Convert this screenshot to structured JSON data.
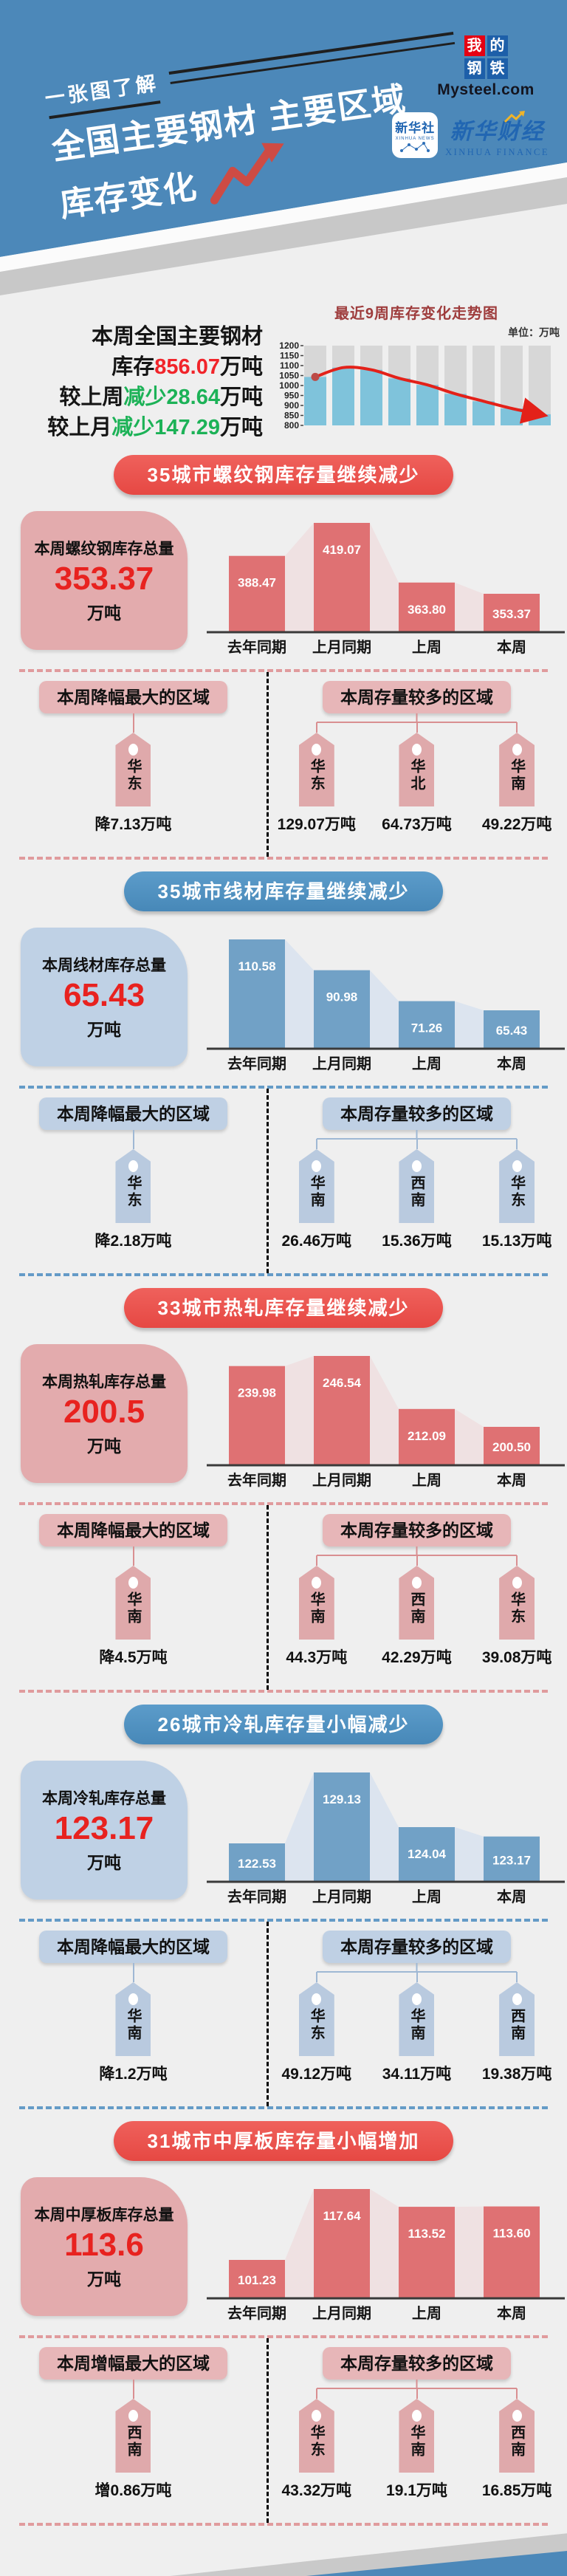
{
  "colors": {
    "page_bg": "#EFEFEF",
    "header_blue": "#4C88B9",
    "red_pill": "#E8524E",
    "blue_pill": "#5191BE",
    "red_bar": "#DF7173",
    "red_bar_light": "#EFE1E2",
    "blue_bar": "#71A1C6",
    "blue_bar_light": "#DCE4EF",
    "red_tag": "#DFA9AB",
    "blue_tag": "#B9CADF",
    "red_connector": "#D98F91",
    "blue_connector": "#9FB8D4",
    "value_red": "#F1242A",
    "value_green": "#1CB257",
    "card_value_red": "#E8221F",
    "trend_bar": "#7FC3DB",
    "trend_column_bg": "#D7D7D7",
    "trend_line": "#E32119",
    "trend_title": "#9E3C3C"
  },
  "header": {
    "tagline": "一张图了解",
    "title_line1": "全国主要钢材 主要区域",
    "title_line2": "库存变化",
    "mysteel": {
      "grid": [
        "我",
        "的",
        "钢",
        "铁"
      ],
      "domain": "Mysteel.com"
    },
    "xinhua_news": {
      "cn": "新华社",
      "en": "XINHUA NEWS"
    },
    "xinhua_finance": {
      "cn": "新华财经",
      "en": "XINHUA FINANCE"
    }
  },
  "summary": {
    "line1": "本周全国主要钢材",
    "line2_pre": "库存",
    "line2_num": "856.07",
    "line2_post": "万吨",
    "line3_pre": "较上周",
    "line3_num": "减少28.64",
    "line3_post": "万吨",
    "line4_pre": "较上月",
    "line4_num": "减少147.29",
    "line4_post": "万吨"
  },
  "chart_data": [
    {
      "type": "bar",
      "title": "最近9周库存变化走势图",
      "unit_label": "单位：万吨",
      "ylim": [
        800,
        1200
      ],
      "y_ticks": [
        800,
        850,
        900,
        950,
        1000,
        1050,
        1100,
        1150,
        1200
      ],
      "x_labels": [],
      "values": [
        1043,
        1090,
        1079,
        1036,
        1003,
        958,
        921,
        885,
        856
      ],
      "overlay": "smoothed red trend line with start dot and end arrow",
      "note": "weekly values estimated from gridlines; latest week = 856.07"
    },
    {
      "type": "bar",
      "title": "35城市螺纹钢库存",
      "categories": [
        "去年同期",
        "上月同期",
        "上周",
        "本周"
      ],
      "values": [
        388.47,
        419.07,
        363.8,
        353.37
      ],
      "labels": [
        "388.47",
        "419.07",
        "363.80",
        "353.37"
      ]
    },
    {
      "type": "bar",
      "title": "35城市线材库存",
      "categories": [
        "去年同期",
        "上月同期",
        "上周",
        "本周"
      ],
      "values": [
        110.58,
        90.98,
        71.26,
        65.43
      ],
      "labels": [
        "110.58",
        "90.98",
        "71.26",
        "65.43"
      ]
    },
    {
      "type": "bar",
      "title": "33城市热轧库存",
      "categories": [
        "去年同期",
        "上月同期",
        "上周",
        "本周"
      ],
      "values": [
        239.98,
        246.54,
        212.09,
        200.5
      ],
      "labels": [
        "239.98",
        "246.54",
        "212.09",
        "200.50"
      ]
    },
    {
      "type": "bar",
      "title": "26城市冷轧库存",
      "categories": [
        "去年同期",
        "上月同期",
        "上周",
        "本周"
      ],
      "values": [
        122.53,
        129.13,
        124.04,
        123.17
      ],
      "labels": [
        "122.53",
        "129.13",
        "124.04",
        "123.17"
      ]
    },
    {
      "type": "bar",
      "title": "31城市中厚板库存",
      "categories": [
        "去年同期",
        "上月同期",
        "上周",
        "本周"
      ],
      "values": [
        101.23,
        117.64,
        113.52,
        113.6
      ],
      "labels": [
        "101.23",
        "117.64",
        "113.52",
        "113.60"
      ]
    }
  ],
  "sections": [
    {
      "slug": "rebar",
      "theme": "red",
      "chart_index": 1,
      "pill": "35城市螺纹钢库存量继续减少",
      "card_label": "本周螺纹钢库存总量",
      "card_value": "353.37",
      "card_unit": "万吨",
      "left_title": "本周降幅最大的区域",
      "left_tags": [
        {
          "region": "华东",
          "value": "降7.13万吨"
        }
      ],
      "right_title": "本周存量较多的区域",
      "right_tags": [
        {
          "region": "华东",
          "value": "129.07万吨"
        },
        {
          "region": "华北",
          "value": "64.73万吨"
        },
        {
          "region": "华南",
          "value": "49.22万吨"
        }
      ]
    },
    {
      "slug": "wire-rod",
      "theme": "blue",
      "chart_index": 2,
      "pill": "35城市线材库存量继续减少",
      "card_label": "本周线材库存总量",
      "card_value": "65.43",
      "card_unit": "万吨",
      "left_title": "本周降幅最大的区域",
      "left_tags": [
        {
          "region": "华东",
          "value": "降2.18万吨"
        }
      ],
      "right_title": "本周存量较多的区域",
      "right_tags": [
        {
          "region": "华南",
          "value": "26.46万吨"
        },
        {
          "region": "西南",
          "value": "15.36万吨"
        },
        {
          "region": "华东",
          "value": "15.13万吨"
        }
      ]
    },
    {
      "slug": "hot-rolled",
      "theme": "red",
      "chart_index": 3,
      "pill": "33城市热轧库存量继续减少",
      "card_label": "本周热轧库存总量",
      "card_value": "200.5",
      "card_unit": "万吨",
      "left_title": "本周降幅最大的区域",
      "left_tags": [
        {
          "region": "华南",
          "value": "降4.5万吨"
        }
      ],
      "right_title": "本周存量较多的区域",
      "right_tags": [
        {
          "region": "华南",
          "value": "44.3万吨"
        },
        {
          "region": "西南",
          "value": "42.29万吨"
        },
        {
          "region": "华东",
          "value": "39.08万吨"
        }
      ]
    },
    {
      "slug": "cold-rolled",
      "theme": "blue",
      "chart_index": 4,
      "pill": "26城市冷轧库存量小幅减少",
      "card_label": "本周冷轧库存总量",
      "card_value": "123.17",
      "card_unit": "万吨",
      "left_title": "本周降幅最大的区域",
      "left_tags": [
        {
          "region": "华南",
          "value": "降1.2万吨"
        }
      ],
      "right_title": "本周存量较多的区域",
      "right_tags": [
        {
          "region": "华东",
          "value": "49.12万吨"
        },
        {
          "region": "华南",
          "value": "34.11万吨"
        },
        {
          "region": "西南",
          "value": "19.38万吨"
        }
      ]
    },
    {
      "slug": "medium-plate",
      "theme": "red",
      "chart_index": 5,
      "pill": "31城市中厚板库存量小幅增加",
      "card_label": "本周中厚板库存总量",
      "card_value": "113.6",
      "card_unit": "万吨",
      "left_title": "本周增幅最大的区域",
      "left_tags": [
        {
          "region": "西南",
          "value": "增0.86万吨"
        }
      ],
      "right_title": "本周存量较多的区域",
      "right_tags": [
        {
          "region": "华东",
          "value": "43.32万吨"
        },
        {
          "region": "华南",
          "value": "19.1万吨"
        },
        {
          "region": "西南",
          "value": "16.85万吨"
        }
      ]
    }
  ]
}
